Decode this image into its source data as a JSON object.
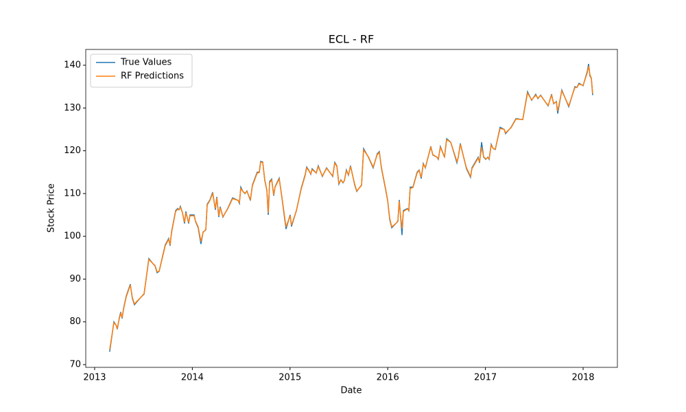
{
  "chart_data": {
    "type": "line",
    "title": "ECL - RF",
    "xlabel": "Date",
    "ylabel": "Stock Price",
    "x": [
      2013.154,
      2013.197,
      2013.218,
      2013.232,
      2013.253,
      2013.267,
      2013.281,
      2013.295,
      2013.323,
      2013.365,
      2013.386,
      2013.407,
      2013.463,
      2013.506,
      2013.555,
      2013.597,
      2013.618,
      2013.639,
      2013.66,
      2013.702,
      2013.723,
      2013.758,
      2013.772,
      2013.787,
      2013.829,
      2013.85,
      2013.864,
      2013.878,
      2013.899,
      2013.92,
      2013.934,
      2013.962,
      2013.976,
      2014.018,
      2014.032,
      2014.06,
      2014.088,
      2014.11,
      2014.138,
      2014.152,
      2014.18,
      2014.208,
      2014.236,
      2014.25,
      2014.271,
      2014.285,
      2014.313,
      2014.362,
      2014.412,
      2014.468,
      2014.482,
      2014.496,
      2014.517,
      2014.538,
      2014.559,
      2014.594,
      2014.615,
      2014.664,
      2014.685,
      2014.699,
      2014.72,
      2014.742,
      2014.763,
      2014.777,
      2014.791,
      2014.812,
      2014.833,
      2014.847,
      2014.889,
      2014.917,
      2014.959,
      2015.001,
      2015.015,
      2015.065,
      2015.114,
      2015.156,
      2015.17,
      2015.191,
      2015.212,
      2015.226,
      2015.268,
      2015.289,
      2015.331,
      2015.374,
      2015.437,
      2015.458,
      2015.479,
      2015.5,
      2015.521,
      2015.542,
      2015.556,
      2015.577,
      2015.598,
      2015.619,
      2015.662,
      2015.683,
      2015.732,
      2015.753,
      2015.802,
      2015.851,
      2015.893,
      2015.914,
      2015.935,
      2015.978,
      2015.999,
      2016.02,
      2016.041,
      2016.083,
      2016.104,
      2016.118,
      2016.132,
      2016.146,
      2016.16,
      2016.202,
      2016.216,
      2016.23,
      2016.258,
      2016.301,
      2016.322,
      2016.343,
      2016.364,
      2016.385,
      2016.441,
      2016.462,
      2016.504,
      2016.518,
      2016.539,
      2016.581,
      2016.603,
      2016.645,
      2016.708,
      2016.722,
      2016.743,
      2016.806,
      2016.848,
      2016.862,
      2016.926,
      2016.94,
      2016.961,
      2016.982,
      2017.003,
      2017.024,
      2017.038,
      2017.059,
      2017.08,
      2017.101,
      2017.15,
      2017.192,
      2017.206,
      2017.263,
      2017.312,
      2017.382,
      2017.431,
      2017.473,
      2017.515,
      2017.537,
      2017.565,
      2017.642,
      2017.677,
      2017.698,
      2017.726,
      2017.74,
      2017.782,
      2017.853,
      2017.916,
      2017.937,
      2017.958,
      2018.0,
      2018.042,
      2018.056,
      2018.07,
      2018.084,
      2018.098
    ],
    "series": [
      {
        "name": "True Values",
        "color": "#1f77b4",
        "values": [
          73,
          80,
          79.3,
          78.3,
          81,
          82.3,
          80.8,
          83,
          86,
          88.8,
          85.5,
          84,
          85.5,
          86.5,
          94.8,
          93.6,
          93.1,
          91.5,
          91.8,
          96,
          98,
          99.5,
          97.8,
          101,
          106,
          106.5,
          106.2,
          107,
          105.5,
          103,
          105.8,
          103,
          105,
          105,
          103.5,
          102,
          98.2,
          101,
          101.5,
          107.5,
          108.5,
          110.3,
          106.2,
          109.2,
          104.5,
          106.9,
          104.5,
          106.5,
          109,
          108.4,
          107.7,
          111.5,
          110.5,
          110,
          110.6,
          108.4,
          112,
          115,
          115,
          117.5,
          117.4,
          113,
          110.7,
          105,
          112.8,
          113.4,
          109.5,
          111.6,
          113.6,
          109,
          101.7,
          105,
          102.3,
          106,
          111.2,
          114.5,
          116.2,
          115.5,
          114.5,
          115.8,
          114.8,
          116.5,
          114,
          116,
          114,
          117.3,
          116.5,
          112.2,
          113.2,
          112.5,
          113,
          115.5,
          114.3,
          116.5,
          112,
          110.5,
          112,
          120.5,
          118.5,
          116,
          119.3,
          119.8,
          116,
          111,
          108.4,
          104,
          102,
          103,
          103.5,
          108.5,
          104.5,
          100.3,
          106,
          106.5,
          106,
          111.5,
          111.5,
          115,
          115.5,
          113.5,
          117,
          116,
          121,
          119,
          118.5,
          118,
          121,
          118.5,
          122.8,
          122,
          117.2,
          118.5,
          121.7,
          115.8,
          113.8,
          116,
          118.5,
          117.2,
          122,
          118.5,
          118,
          118.5,
          118,
          121.5,
          120.5,
          120.3,
          125.5,
          125,
          124,
          125.5,
          127.5,
          127.3,
          133.8,
          131.8,
          133.2,
          132.2,
          133,
          130.5,
          133.2,
          131,
          131.5,
          128.7,
          134.2,
          130.3,
          135,
          134.8,
          135.8,
          135.2,
          138.5,
          140.3,
          137.5,
          137,
          133
        ]
      },
      {
        "name": "RF Predictions",
        "color": "#ff7f0e",
        "values": [
          73.5,
          79.8,
          79.3,
          78.5,
          80.8,
          82,
          81,
          82.8,
          85.8,
          88.6,
          85.7,
          84.2,
          85.5,
          86.6,
          94.6,
          93.6,
          93.2,
          91.7,
          91.8,
          95.8,
          97.8,
          99.3,
          98,
          100.8,
          105.8,
          106.3,
          106.3,
          106.8,
          105.5,
          103.3,
          105.5,
          103.2,
          104.8,
          104.8,
          103.6,
          102.2,
          98.8,
          100.9,
          101.6,
          107.3,
          108.4,
          110,
          106.5,
          109,
          104.8,
          106.7,
          104.6,
          106.4,
          108.8,
          108.4,
          107.9,
          111.2,
          110.5,
          110.1,
          110.5,
          108.6,
          111.8,
          114.8,
          114.9,
          117.3,
          117.3,
          113.2,
          110.8,
          105.5,
          112.5,
          113.2,
          109.7,
          111.5,
          113.4,
          109.2,
          102.2,
          104.8,
          102.6,
          106,
          111,
          114.3,
          116,
          115.4,
          114.6,
          115.6,
          114.8,
          116.3,
          114.1,
          115.9,
          114.1,
          117.1,
          116.4,
          112.4,
          113.1,
          112.6,
          113,
          115.3,
          114.4,
          116.3,
          112.2,
          110.6,
          111.9,
          120.2,
          118.6,
          116.2,
          119.1,
          119.6,
          116.2,
          111.2,
          108.5,
          104.3,
          102.2,
          103,
          103.6,
          108.2,
          104.7,
          101.8,
          105.8,
          106.4,
          106.1,
          111.2,
          111.4,
          114.8,
          115.4,
          113.8,
          116.8,
          116.1,
          120.8,
          119.1,
          118.5,
          118.1,
          120.8,
          118.6,
          122.6,
          122,
          117.5,
          118.4,
          121.5,
          116,
          114,
          115.8,
          118.3,
          117.4,
          120.8,
          118.6,
          118.1,
          118.4,
          118.1,
          121.3,
          120.5,
          120.4,
          125.2,
          125,
          124.2,
          125.4,
          127.4,
          127.3,
          133.5,
          131.9,
          133,
          132.3,
          132.9,
          130.6,
          133,
          131.1,
          131.4,
          129.3,
          134,
          130.5,
          134.8,
          134.8,
          135.6,
          135.3,
          138.2,
          139.8,
          137.8,
          137,
          133.4
        ]
      }
    ],
    "xlim": [
      2012.909,
      2018.351
    ],
    "xticks": [
      2013,
      2014,
      2015,
      2016,
      2017,
      2018
    ],
    "ylim": [
      69.36,
      143.69
    ],
    "yticks": [
      70,
      80,
      90,
      100,
      110,
      120,
      130,
      140
    ],
    "grid": false,
    "legend": "upper left"
  }
}
